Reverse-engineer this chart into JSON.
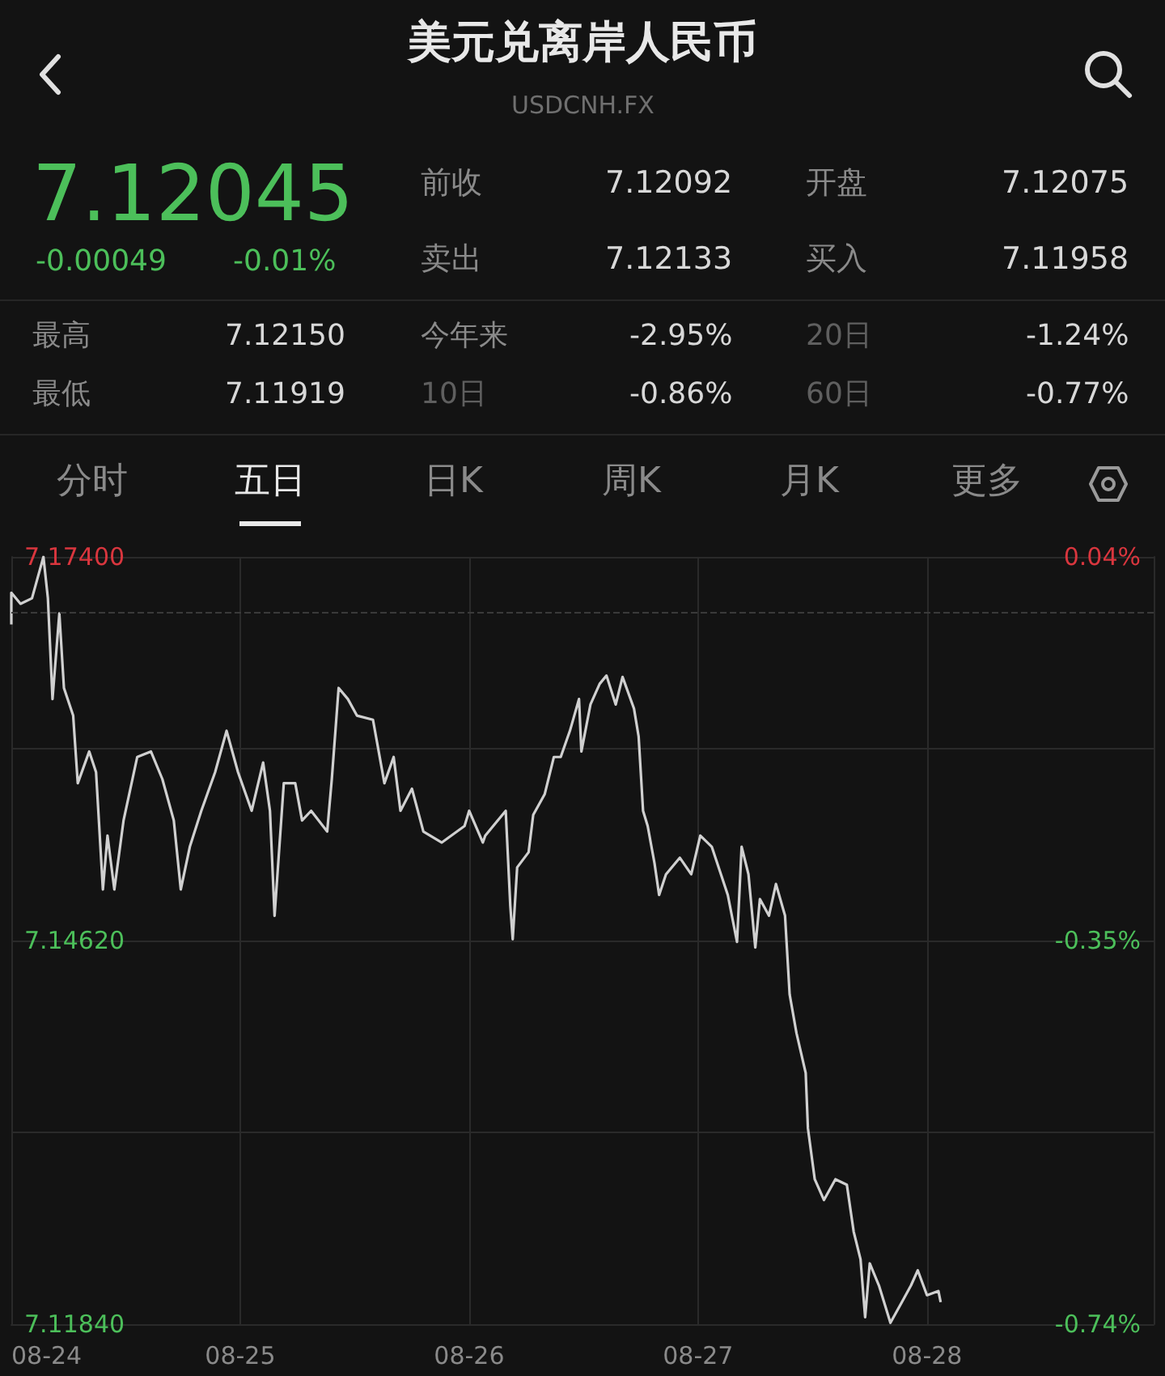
{
  "chart_data": {
    "type": "line",
    "title": "美元兑离岸人民币",
    "subtitle": "USDCNH.FX",
    "annotations": [
      "7.12045",
      "-0.00049",
      "-0.01%",
      "前收",
      "7.12092",
      "开盘",
      "7.12075",
      "卖出",
      "7.12133",
      "买入",
      "7.11958",
      "最高",
      "7.12150",
      "今年来",
      "-2.95%",
      "20日",
      "-1.24%",
      "最低",
      "7.11919",
      "10日",
      "-0.86%",
      "60日",
      "-0.77%",
      "分时",
      "五日",
      "日K",
      "周K",
      "月K",
      "更多"
    ],
    "x": [
      "--08-24T00:00",
      "--08-24T00:00",
      "--08-24T00:58",
      "--08-24T02:10",
      "--08-24T03:22",
      "--08-24T03:50",
      "--08-24T04:19",
      "--08-24T05:02",
      "--08-24T05:31",
      "--08-24T06:29",
      "--08-24T06:58",
      "--08-24T08:10",
      "--08-24T08:53",
      "--08-24T09:36",
      "--08-24T10:05",
      "--08-24T10:48",
      "--08-24T11:46",
      "--08-24T13:12",
      "--08-24T14:38",
      "--08-24T15:50",
      "--08-24T17:02",
      "--08-24T17:46",
      "--08-24T18:43",
      "--08-24T19:55",
      "--08-24T21:22",
      "--08-24T22:34",
      "--08-24T23:46",
      "--08-25T01:12",
      "--08-25T02:24",
      "--08-25T03:07",
      "--08-25T03:36",
      "--08-25T04:34",
      "--08-25T05:46",
      "--08-25T06:29",
      "--08-25T07:26",
      "--08-25T09:07",
      "--08-25T09:36",
      "--08-25T10:19",
      "--08-25T11:17",
      "--08-25T12:14",
      "--08-25T13:55",
      "--08-25T15:07",
      "--08-25T16:05",
      "--08-25T16:48",
      "--08-25T18:00",
      "--08-25T19:12",
      "--08-25T21:07",
      "--08-25T23:31",
      "--08-26T00:00",
      "--08-26T01:26",
      "--08-26T01:41",
      "--08-26T03:50",
      "--08-26T04:19",
      "--08-26T04:34",
      "--08-26T05:02",
      "--08-26T06:14",
      "--08-26T06:43",
      "--08-26T07:55",
      "--08-26T08:53",
      "--08-26T09:36",
      "--08-26T10:34",
      "--08-26T11:31",
      "--08-26T11:46",
      "--08-26T12:43",
      "--08-26T13:41",
      "--08-26T14:24",
      "--08-26T15:22",
      "--08-26T16:05",
      "--08-26T17:17",
      "--08-26T17:46",
      "--08-26T18:14",
      "--08-26T18:43",
      "--08-26T19:26",
      "--08-26T19:55",
      "--08-26T20:38",
      "--08-26T22:05",
      "--08-26T23:17",
      "--08-27T00:14",
      "--08-27T01:26",
      "--08-27T02:24",
      "--08-27T03:07",
      "--08-27T04:05",
      "--08-27T04:34",
      "--08-27T05:17",
      "--08-27T06:00",
      "--08-27T06:29",
      "--08-27T07:26",
      "--08-27T08:10",
      "--08-27T09:07",
      "--08-27T09:36",
      "--08-27T10:19",
      "--08-27T11:17",
      "--08-27T11:31",
      "--08-27T12:14",
      "--08-27T13:12",
      "--08-27T14:24",
      "--08-27T15:36",
      "--08-27T16:19",
      "--08-27T17:02",
      "--08-27T17:31",
      "--08-27T18:00",
      "--08-27T18:58",
      "--08-27T20:10",
      "--08-27T21:22",
      "--08-27T22:19",
      "--08-27T23:02",
      "--08-28T00:00",
      "--08-28T01:12",
      "--08-28T01:26"
    ],
    "series": [
      {
        "color": "#d0d0d0",
        "values": [
          7.1691,
          7.1714,
          7.1706,
          7.171,
          7.174,
          7.171,
          7.1637,
          7.1699,
          7.1645,
          7.1625,
          7.1576,
          7.1599,
          7.1584,
          7.1499,
          7.1538,
          7.1499,
          7.1549,
          7.1595,
          7.1599,
          7.1579,
          7.1549,
          7.1499,
          7.153,
          7.1556,
          7.1584,
          7.1614,
          7.1584,
          7.1556,
          7.1591,
          7.1556,
          7.148,
          7.1576,
          7.1576,
          7.1549,
          7.1556,
          7.1541,
          7.1579,
          7.1645,
          7.1637,
          7.1625,
          7.1622,
          7.1576,
          7.1595,
          7.1556,
          7.1572,
          7.1541,
          7.1533,
          7.1545,
          7.1556,
          7.1533,
          7.1538,
          7.1556,
          7.1487,
          7.1463,
          7.1515,
          7.1526,
          7.1553,
          7.1568,
          7.1595,
          7.1595,
          7.1614,
          7.1637,
          7.1599,
          7.1633,
          7.1648,
          7.1654,
          7.1633,
          7.1653,
          7.163,
          7.161,
          7.1556,
          7.1545,
          7.1518,
          7.1495,
          7.151,
          7.1522,
          7.151,
          7.1538,
          7.153,
          7.151,
          7.1495,
          7.1461,
          7.153,
          7.151,
          7.1457,
          7.1492,
          7.148,
          7.1503,
          7.148,
          7.1423,
          7.1395,
          7.1366,
          7.1326,
          7.1289,
          7.1274,
          7.1289,
          7.1285,
          7.1251,
          7.1231,
          7.1189,
          7.1228,
          7.1212,
          7.1185,
          7.12,
          7.1212,
          7.1223,
          7.1205,
          7.1208,
          7.12
        ]
      }
    ],
    "xlim": [
      "--08-24T00:00",
      "--08-28T23:46"
    ],
    "xticks": [
      {
        "value": "--08-24",
        "label": "08-24"
      },
      {
        "value": "--08-25",
        "label": "08-25"
      },
      {
        "value": "--08-26",
        "label": "08-26"
      },
      {
        "value": "--08-27",
        "label": "08-27"
      },
      {
        "value": "--08-28",
        "label": "08-28"
      }
    ],
    "ylim": [
      7.1184,
      7.174
    ],
    "yticks": [
      {
        "value": 7.174,
        "label": "7.17400"
      },
      {
        "value": 7.1601,
        "label": null
      },
      {
        "value": 7.1462,
        "label": "7.14620"
      },
      {
        "value": 7.1323,
        "label": null
      },
      {
        "value": 7.1184,
        "label": "7.11840"
      }
    ],
    "y2lim": [
      -0.74,
      0.04
    ],
    "y2ticks": [
      {
        "value": 0.04,
        "label": "0.04%"
      },
      {
        "value": -0.35,
        "label": "-0.35%"
      },
      {
        "value": -0.74,
        "label": "-0.74%"
      }
    ],
    "ref_lines": [
      {
        "axis": "y",
        "value": 7.17,
        "color": "#3a3a3a",
        "line_style": "dashed"
      }
    ],
    "grid": true,
    "marker": "none",
    "line_style": "solid"
  }
}
